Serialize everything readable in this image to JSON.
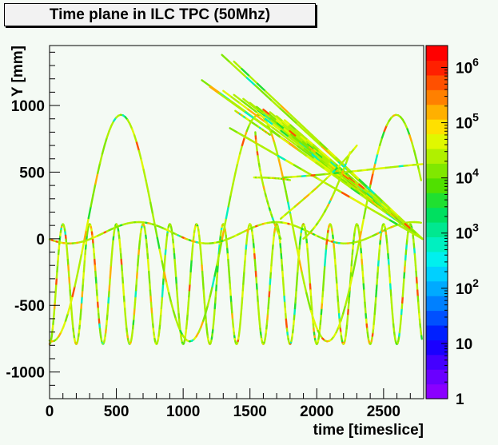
{
  "chart_data": {
    "type": "heatmap",
    "title": "Time plane in ILC TPC (50Mhz)",
    "xlabel": "time [timeslice]",
    "ylabel": "Y [mm]",
    "xlim": [
      0,
      2800
    ],
    "ylim": [
      -1200,
      1450
    ],
    "x_ticks": [
      0,
      500,
      1000,
      1500,
      2000,
      2500
    ],
    "x_tick_labels": [
      "0",
      "500",
      "1000",
      "1500",
      "2000",
      "2500"
    ],
    "y_ticks": [
      -1000,
      -500,
      0,
      500,
      1000
    ],
    "y_tick_labels": [
      "-1000",
      "-500",
      "0",
      "500",
      "1000"
    ],
    "z_scale": "log",
    "z_range": [
      1,
      2500000
    ],
    "z_ticks": [
      1,
      10,
      100,
      1000,
      10000,
      100000,
      1000000
    ],
    "z_tick_labels": [
      {
        "base": "1",
        "exp": ""
      },
      {
        "base": "10",
        "exp": ""
      },
      {
        "base": "10",
        "exp": "2"
      },
      {
        "base": "10",
        "exp": "3"
      },
      {
        "base": "10",
        "exp": "4"
      },
      {
        "base": "10",
        "exp": "5"
      },
      {
        "base": "10",
        "exp": "6"
      }
    ],
    "palette": [
      "#8a00ff",
      "#6a00ff",
      "#4400ff",
      "#1a00ff",
      "#0020ff",
      "#0050ff",
      "#0080ff",
      "#00aaff",
      "#00d0ff",
      "#00f0ee",
      "#00f0c0",
      "#00e890",
      "#00e060",
      "#20e030",
      "#50e000",
      "#80e800",
      "#b0f000",
      "#e0f800",
      "#ffe000",
      "#ffb000",
      "#ff8000",
      "#ff5000",
      "#ff2000",
      "#ff0000"
    ],
    "tracks": [
      {
        "kind": "sine",
        "center": -340,
        "amplitude": 450,
        "period": 200,
        "phase_x": 0,
        "x_range": [
          0,
          2790
        ]
      },
      {
        "kind": "sine",
        "center": 80,
        "amplitude": 850,
        "period": 1030,
        "phase_x": 20,
        "x_range": [
          0,
          2790
        ]
      },
      {
        "kind": "sine",
        "center": 45,
        "amplitude": 80,
        "period": 1030,
        "phase_x": 150,
        "x_range": [
          0,
          2790
        ]
      },
      {
        "kind": "line",
        "points": [
          [
            1290,
            1380
          ],
          [
            2790,
            0
          ]
        ]
      },
      {
        "kind": "line",
        "points": [
          [
            1380,
            1330
          ],
          [
            2790,
            0
          ]
        ]
      },
      {
        "kind": "line",
        "points": [
          [
            1140,
            1190
          ],
          [
            2790,
            0
          ]
        ]
      },
      {
        "kind": "line",
        "points": [
          [
            1200,
            1140
          ],
          [
            2790,
            0
          ]
        ]
      },
      {
        "kind": "line",
        "points": [
          [
            1300,
            1110
          ],
          [
            2790,
            0
          ]
        ]
      },
      {
        "kind": "line",
        "points": [
          [
            1380,
            1080
          ],
          [
            2790,
            0
          ]
        ]
      },
      {
        "kind": "line",
        "points": [
          [
            1450,
            1050
          ],
          [
            2790,
            0
          ]
        ]
      },
      {
        "kind": "line",
        "points": [
          [
            1500,
            1020
          ],
          [
            2790,
            0
          ]
        ]
      },
      {
        "kind": "line",
        "points": [
          [
            1550,
            990
          ],
          [
            2790,
            0
          ]
        ]
      },
      {
        "kind": "line",
        "points": [
          [
            1600,
            970
          ],
          [
            2790,
            0
          ]
        ]
      },
      {
        "kind": "line",
        "points": [
          [
            1650,
            950
          ],
          [
            2790,
            0
          ]
        ]
      },
      {
        "kind": "line",
        "points": [
          [
            1700,
            920
          ],
          [
            2790,
            0
          ]
        ]
      },
      {
        "kind": "line",
        "points": [
          [
            1760,
            890
          ],
          [
            2790,
            0
          ]
        ]
      },
      {
        "kind": "line",
        "points": [
          [
            1420,
            790
          ],
          [
            2790,
            0
          ]
        ]
      },
      {
        "kind": "line",
        "points": [
          [
            1350,
            830
          ],
          [
            2790,
            0
          ]
        ]
      },
      {
        "kind": "line",
        "points": [
          [
            1390,
            960
          ],
          [
            1650,
            780
          ]
        ]
      },
      {
        "kind": "curve",
        "points": [
          [
            1750,
            460
          ],
          [
            2100,
            480
          ],
          [
            2450,
            530
          ],
          [
            2790,
            560
          ]
        ]
      },
      {
        "kind": "curve",
        "points": [
          [
            1530,
            460
          ],
          [
            1660,
            460
          ],
          [
            1760,
            450
          ],
          [
            1800,
            440
          ]
        ]
      },
      {
        "kind": "curve",
        "points": [
          [
            1540,
            800
          ],
          [
            1560,
            500
          ],
          [
            1640,
            200
          ],
          [
            1730,
            0
          ]
        ]
      },
      {
        "kind": "curve",
        "points": [
          [
            1730,
            150
          ],
          [
            1900,
            300
          ],
          [
            2100,
            450
          ],
          [
            2300,
            700
          ]
        ]
      },
      {
        "kind": "curve",
        "points": [
          [
            1900,
            0
          ],
          [
            2050,
            120
          ],
          [
            2150,
            380
          ],
          [
            2250,
            650
          ]
        ]
      }
    ]
  }
}
